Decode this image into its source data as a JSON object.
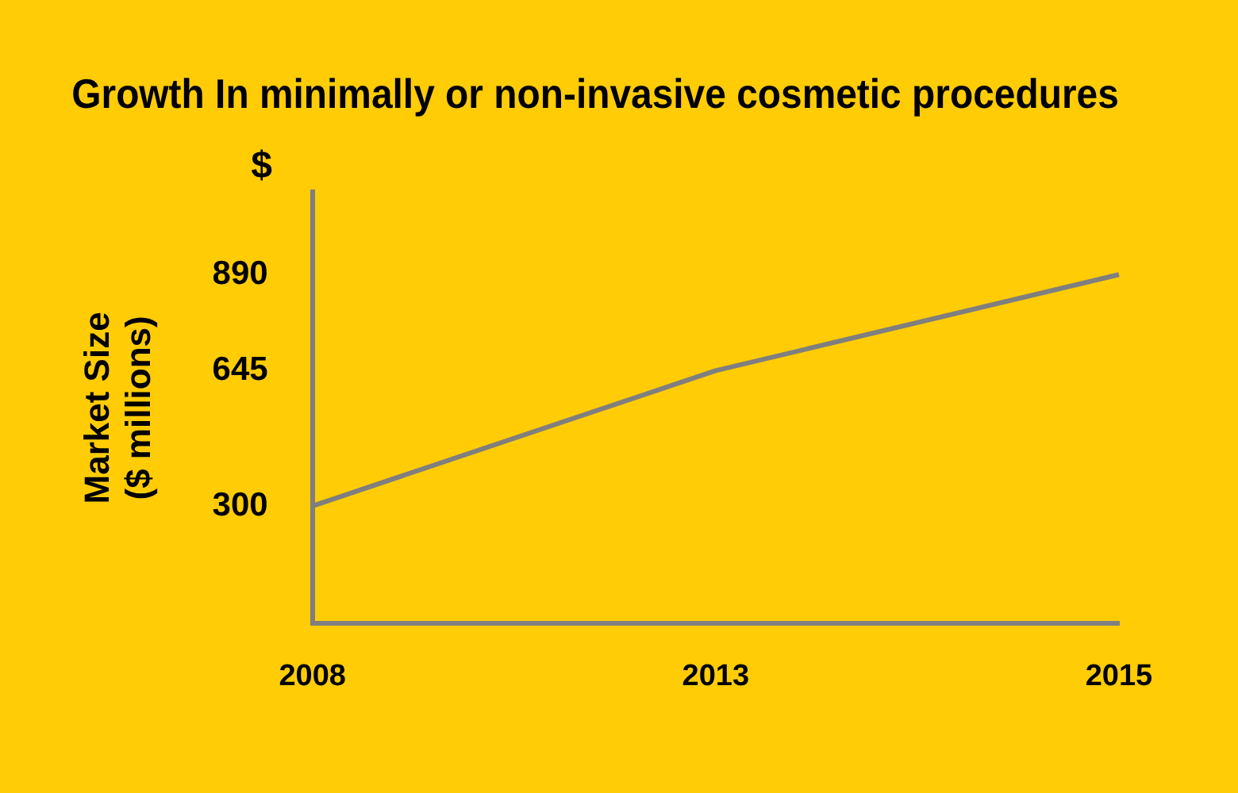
{
  "chart_data": {
    "type": "line",
    "title": "Growth In minimally or non-invasive cosmetic procedures",
    "ylabel": "Market Size\n($ millions)",
    "annotations": [
      "$"
    ],
    "categories": [
      "2008",
      "2013",
      "2015"
    ],
    "series": [
      {
        "color": "#7f7f7f",
        "values": [
          300,
          645,
          890
        ]
      }
    ],
    "ylim": [
      0,
      1100
    ],
    "yticks": [
      300,
      645,
      890
    ],
    "grid": false,
    "legend": false,
    "marker": "none",
    "line_style": "solid"
  }
}
